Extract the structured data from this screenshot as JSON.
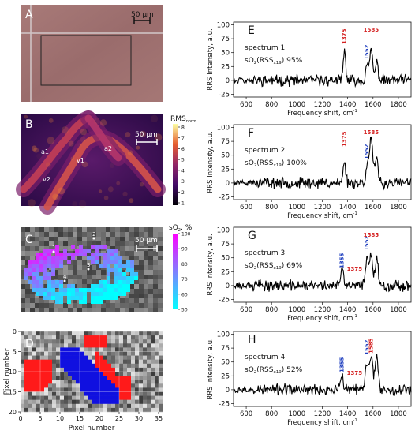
{
  "panels": {
    "A": {
      "letter": "A",
      "scalebar": "50 μm"
    },
    "B": {
      "letter": "B",
      "scalebar": "50 μm",
      "cbar_title": "RMS",
      "cbar_sub": "norm",
      "cbar_ticks": [
        "8",
        "7",
        "6",
        "5",
        "4",
        "3",
        "2",
        "1"
      ],
      "labels": [
        "a1",
        "a2",
        "v1",
        "v2"
      ]
    },
    "C": {
      "letter": "C",
      "scalebar": "50 μm",
      "cbar_title": "sO",
      "cbar_sub": "2",
      "cbar_unit": ", %",
      "cbar_ticks": [
        "100",
        "90",
        "80",
        "70",
        "60",
        "50"
      ],
      "points": [
        "1",
        "2",
        "3",
        "4"
      ]
    },
    "D": {
      "letter": "D",
      "ylabel": "Pixel number",
      "xlabel": "Pixel number",
      "yticks": [
        "0",
        "5",
        "10",
        "15",
        "20"
      ],
      "xticks": [
        "0",
        "5",
        "10",
        "15",
        "20",
        "25",
        "30",
        "35"
      ]
    }
  },
  "chart_data": [
    {
      "type": "line",
      "letter": "E",
      "title": "spectrum 1",
      "so2_label_main": "sO",
      "so2_sub": "2",
      "so2_mid": "(RSS",
      "so2_sub2": "x19",
      "so2_value": ") 95%",
      "ylabel": "RRS Intensity, a.u.",
      "xlabel": "Frequency shift, cm",
      "xlim": [
        500,
        1900
      ],
      "ylim": [
        -30,
        105
      ],
      "xticks": [
        600,
        800,
        1000,
        1200,
        1400,
        1600,
        1800
      ],
      "yticks": [
        -25,
        0,
        25,
        50,
        75,
        100
      ],
      "peaks": [
        {
          "x": 1375,
          "label": "1375",
          "color": "#d42020"
        },
        {
          "x": 1552,
          "label": "1552",
          "color": "#1f3fbf"
        },
        {
          "x": 1585,
          "label": "1585",
          "color": "#d42020"
        }
      ],
      "series": [
        {
          "seed": 11,
          "peaks": [
            [
              1375,
              50,
              10
            ],
            [
              1552,
              25,
              10
            ],
            [
              1585,
              55,
              12
            ],
            [
              1630,
              30,
              12
            ]
          ]
        }
      ]
    },
    {
      "type": "line",
      "letter": "F",
      "title": "spectrum 2",
      "so2_label_main": "sO",
      "so2_sub": "2",
      "so2_mid": "(RSS",
      "so2_sub2": "x19",
      "so2_value": ") 100%",
      "ylabel": "RRS Intensity, a.u.",
      "xlabel": "Frequency shift, cm",
      "xlim": [
        500,
        1900
      ],
      "ylim": [
        -30,
        105
      ],
      "xticks": [
        600,
        800,
        1000,
        1200,
        1400,
        1600,
        1800
      ],
      "yticks": [
        -25,
        0,
        25,
        50,
        75,
        100
      ],
      "peaks": [
        {
          "x": 1375,
          "label": "1375",
          "color": "#d42020"
        },
        {
          "x": 1552,
          "label": "1552",
          "color": "#1f3fbf"
        },
        {
          "x": 1585,
          "label": "1585",
          "color": "#d42020"
        }
      ],
      "series": [
        {
          "seed": 23,
          "peaks": [
            [
              1375,
              40,
              10
            ],
            [
              1552,
              30,
              10
            ],
            [
              1585,
              80,
              14
            ],
            [
              1630,
              40,
              12
            ]
          ]
        }
      ]
    },
    {
      "type": "line",
      "letter": "G",
      "title": "spectrum 3",
      "so2_label_main": "sO",
      "so2_sub": "2",
      "so2_mid": "(RSS",
      "so2_sub2": "x19",
      "so2_value": ") 69%",
      "ylabel": "RRS Intensity, a.u.",
      "xlabel": "Frequency shift, cm",
      "xlim": [
        500,
        1900
      ],
      "ylim": [
        -30,
        105
      ],
      "xticks": [
        600,
        800,
        1000,
        1200,
        1400,
        1600,
        1800
      ],
      "yticks": [
        -25,
        0,
        25,
        50,
        75,
        100
      ],
      "peaks": [
        {
          "x": 1355,
          "label": "1355",
          "color": "#1f3fbf"
        },
        {
          "x": 1375,
          "label": "1375",
          "color": "#d42020"
        },
        {
          "x": 1552,
          "label": "1552",
          "color": "#1f3fbf"
        },
        {
          "x": 1585,
          "label": "1585",
          "color": "#d42020"
        }
      ],
      "series": [
        {
          "seed": 37,
          "peaks": [
            [
              1355,
              30,
              10
            ],
            [
              1552,
              45,
              12
            ],
            [
              1585,
              55,
              14
            ],
            [
              1630,
              45,
              12
            ]
          ]
        }
      ]
    },
    {
      "type": "line",
      "letter": "H",
      "title": "spectrum 4",
      "so2_label_main": "sO",
      "so2_sub": "2",
      "so2_mid": "(RSS",
      "so2_sub2": "x19",
      "so2_value": ") 52%",
      "ylabel": "RRS Intensity, a.u.",
      "xlabel": "Frequency shift, cm",
      "xlim": [
        500,
        1900
      ],
      "ylim": [
        -30,
        105
      ],
      "xticks": [
        600,
        800,
        1000,
        1200,
        1400,
        1600,
        1800
      ],
      "yticks": [
        -25,
        0,
        25,
        50,
        75,
        100
      ],
      "peaks": [
        {
          "x": 1355,
          "label": "1355",
          "color": "#1f3fbf"
        },
        {
          "x": 1375,
          "label": "1375",
          "color": "#d42020"
        },
        {
          "x": 1552,
          "label": "1552",
          "color": "#1f3fbf"
        },
        {
          "x": 1585,
          "label": "1585",
          "color": "#d42020"
        }
      ],
      "series": [
        {
          "seed": 53,
          "peaks": [
            [
              1355,
              28,
              10
            ],
            [
              1552,
              45,
              12
            ],
            [
              1585,
              60,
              14
            ],
            [
              1630,
              60,
              12
            ]
          ]
        }
      ]
    }
  ]
}
